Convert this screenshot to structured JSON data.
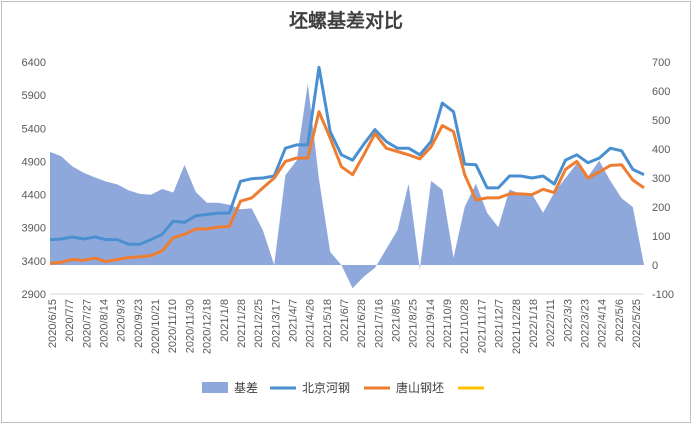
{
  "chart_data": {
    "type": "line",
    "title": "坯螺基差对比",
    "legend_position": "bottom",
    "grid": false,
    "y_left": {
      "ylim": [
        2900,
        6400
      ],
      "ticks": [
        2900,
        3400,
        3900,
        4400,
        4900,
        5400,
        5900,
        6400
      ]
    },
    "y_right": {
      "ylim": [
        -100,
        700
      ],
      "ticks": [
        -100,
        0,
        100,
        200,
        300,
        400,
        500,
        600,
        700
      ]
    },
    "x_ticks": [
      "2020/6/15",
      "2020/7/7",
      "2020/7/27",
      "2020/8/14",
      "2020/9/3",
      "2020/9/23",
      "2020/10/21",
      "2020/11/10",
      "2020/11/30",
      "2020/12/18",
      "2021/1/8",
      "2021/1/28",
      "2021/2/25",
      "2021/3/17",
      "2021/4/7",
      "2021/4/26",
      "2021/5/18",
      "2021/6/7",
      "2021/6/28",
      "2021/7/16",
      "2021/8/5",
      "2021/8/25",
      "2021/9/14",
      "2021/10/9",
      "2021/10/28",
      "2021/11/17",
      "2021/12/7",
      "2021/12/28",
      "2022/1/18",
      "2022/2/11",
      "2022/3/3",
      "2022/3/23",
      "2022/4/14",
      "2022/5/6",
      "2022/5/25"
    ],
    "series": [
      {
        "name": "基差",
        "type": "area",
        "axis": "right",
        "color": "#8fa8dc",
        "values": [
          390,
          375,
          340,
          318,
          302,
          288,
          278,
          258,
          245,
          242,
          262,
          250,
          345,
          252,
          215,
          215,
          208,
          192,
          195,
          120,
          0,
          310,
          360,
          625,
          295,
          45,
          0,
          -80,
          -40,
          -10,
          55,
          120,
          280,
          -15,
          290,
          260,
          25,
          200,
          280,
          180,
          130,
          260,
          245,
          245,
          180,
          250,
          300,
          350,
          305,
          360,
          290,
          230,
          200,
          0
        ]
      },
      {
        "name": "北京河钢",
        "type": "line",
        "axis": "left",
        "color": "#4a90d0",
        "values": [
          3720,
          3730,
          3760,
          3730,
          3760,
          3720,
          3720,
          3650,
          3650,
          3720,
          3800,
          4000,
          3980,
          4080,
          4100,
          4120,
          4120,
          4600,
          4640,
          4650,
          4680,
          5100,
          5150,
          5150,
          6320,
          5350,
          5000,
          4920,
          5160,
          5380,
          5200,
          5100,
          5100,
          5000,
          5200,
          5780,
          5650,
          4860,
          4850,
          4500,
          4500,
          4680,
          4680,
          4650,
          4680,
          4560,
          4920,
          5000,
          4880,
          4950,
          5100,
          5060,
          4780,
          4700
        ]
      },
      {
        "name": "唐山钢坯",
        "type": "line",
        "axis": "left",
        "color": "#ed7d31",
        "values": [
          3360,
          3380,
          3420,
          3410,
          3440,
          3390,
          3420,
          3450,
          3460,
          3480,
          3550,
          3750,
          3800,
          3880,
          3880,
          3910,
          3920,
          4300,
          4350,
          4500,
          4650,
          4900,
          4950,
          4950,
          5650,
          5250,
          4820,
          4700,
          5000,
          5320,
          5100,
          5050,
          5000,
          4940,
          5120,
          5440,
          5350,
          4700,
          4320,
          4350,
          4350,
          4410,
          4410,
          4400,
          4480,
          4430,
          4780,
          4900,
          4650,
          4740,
          4840,
          4850,
          4620,
          4500
        ]
      },
      {
        "name": "",
        "type": "line",
        "axis": "left",
        "color": "#ffc000",
        "values": []
      }
    ]
  }
}
